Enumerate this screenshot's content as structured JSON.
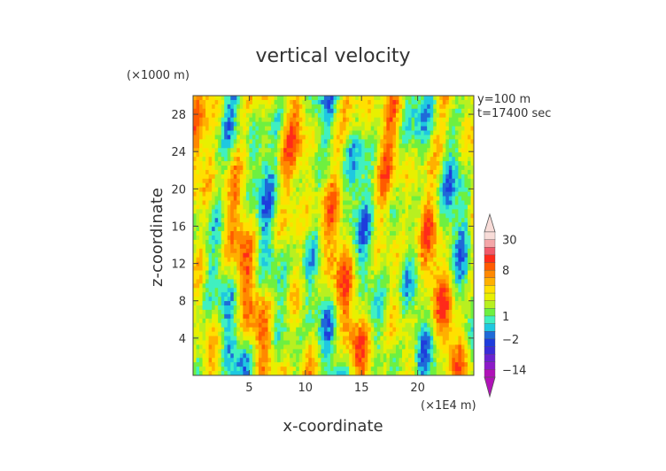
{
  "chart_data": {
    "type": "heatmap",
    "title": "vertical velocity",
    "xlabel": "x-coordinate",
    "ylabel": "z-coordinate",
    "x_scale_label": "(×1E4 m)",
    "y_scale_label": "(×1000 m)",
    "annotations": [
      "y=100 m",
      "t=17400 sec"
    ],
    "xlim": [
      0,
      25
    ],
    "ylim": [
      0,
      30
    ],
    "x_ticks": [
      5,
      10,
      15,
      20
    ],
    "y_ticks": [
      4,
      8,
      12,
      16,
      20,
      24,
      28
    ],
    "grid": false,
    "colorbar": {
      "placement": "right",
      "labels": [
        {
          "text": "30",
          "value": 30
        },
        {
          "text": "8",
          "value": 8
        },
        {
          "text": "1",
          "value": 1
        },
        {
          "text": "−2",
          "value": -2
        },
        {
          "text": "−14",
          "value": -14
        }
      ],
      "levels": [
        -20,
        -14,
        -10,
        -6,
        -4,
        -2,
        -1,
        0,
        1,
        2,
        3,
        4,
        5,
        6,
        8,
        10,
        14,
        20,
        30,
        40
      ],
      "colors": [
        "#b012b8",
        "#8c1ac8",
        "#6a22d0",
        "#3a2cd8",
        "#1e3cdc",
        "#1f6ad8",
        "#1fc8e0",
        "#40f0c0",
        "#6ef040",
        "#b8f020",
        "#e8f000",
        "#ffe000",
        "#ffb000",
        "#ff8800",
        "#ff5a00",
        "#ff2a1a",
        "#f05a6a",
        "#f4a6a8",
        "#f8dcd8"
      ]
    }
  }
}
